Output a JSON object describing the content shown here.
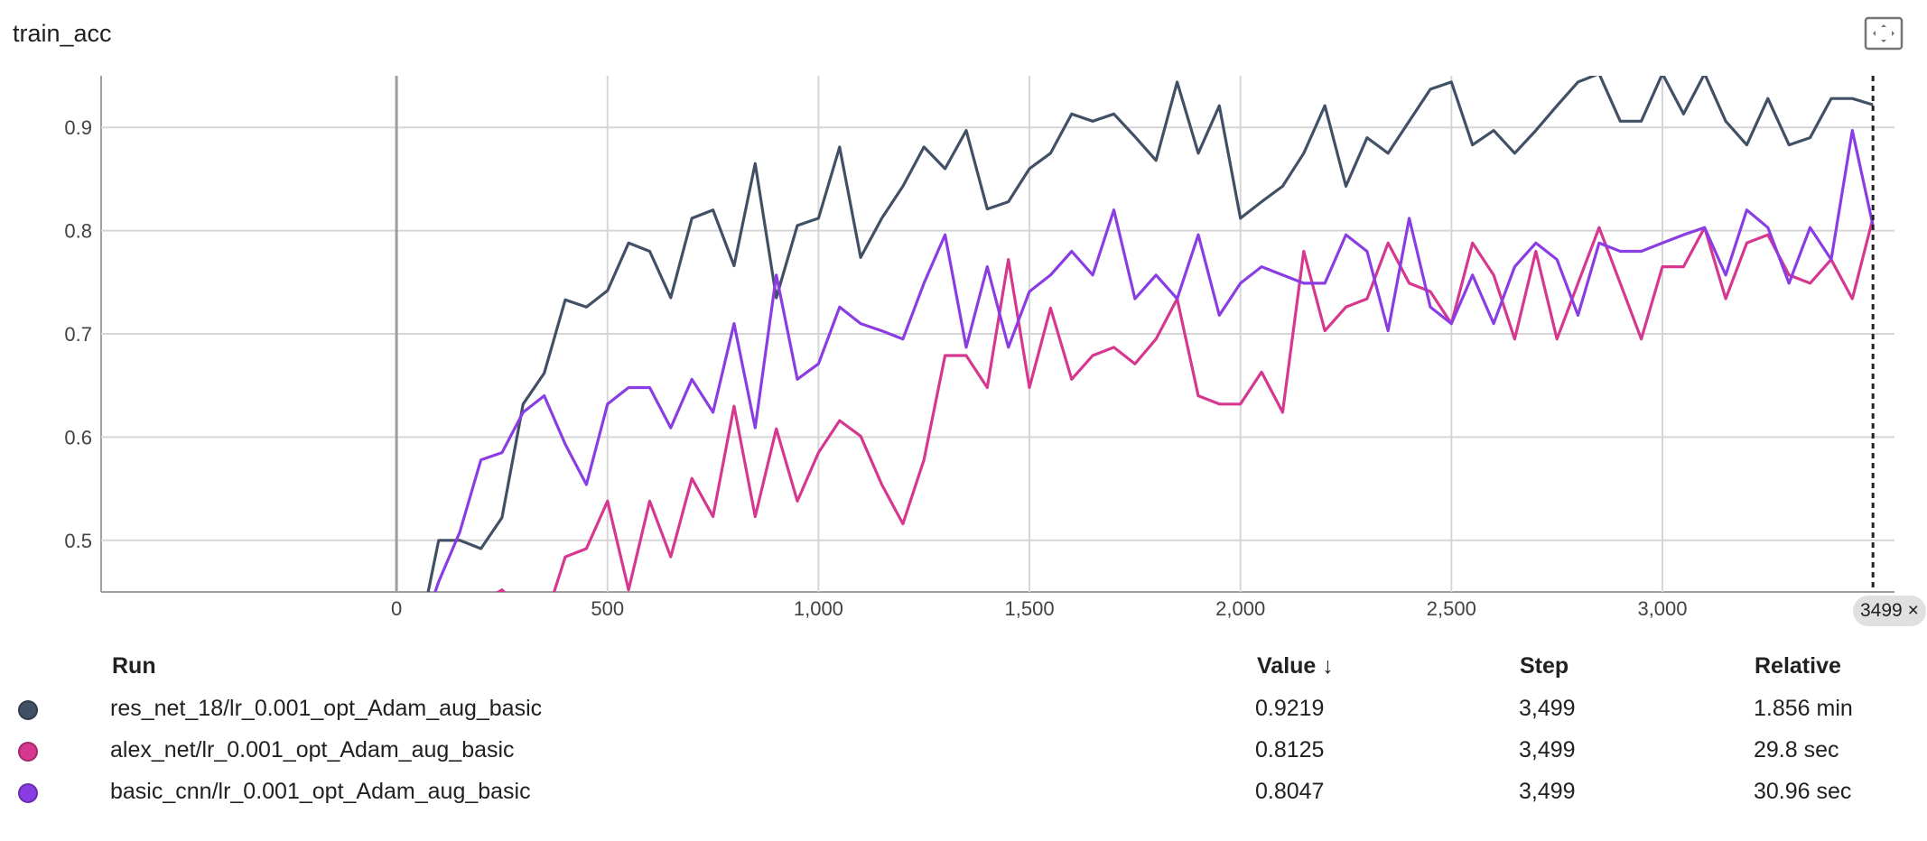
{
  "card": {
    "title": "train_acc",
    "fullscreen_icon": "fullscreen-icon"
  },
  "chart_data": {
    "type": "line",
    "title": "train_acc",
    "xlim": [
      -700,
      3550
    ],
    "ylim": [
      0.45,
      0.95
    ],
    "x_ticks": [
      0,
      500,
      1000,
      1500,
      2000,
      2500,
      3000
    ],
    "x_tick_labels": [
      "0",
      "500",
      "1,000",
      "1,500",
      "2,000",
      "2,500",
      "3,000"
    ],
    "y_ticks": [
      0.5,
      0.6,
      0.7,
      0.8,
      0.9
    ],
    "y_tick_labels": [
      "0.5",
      "0.6",
      "0.7",
      "0.8",
      "0.9"
    ],
    "grid": true,
    "cursor_step": 3499,
    "cursor_label": "3499",
    "series": [
      {
        "name": "res_net_18/lr_0.001_opt_Adam_aug_basic",
        "color": "#425066",
        "x": [
          50,
          100,
          150,
          200,
          250,
          300,
          350,
          400,
          450,
          500,
          550,
          600,
          650,
          700,
          750,
          800,
          850,
          900,
          950,
          1000,
          1050,
          1100,
          1150,
          1200,
          1250,
          1300,
          1350,
          1400,
          1450,
          1500,
          1550,
          1600,
          1650,
          1700,
          1750,
          1800,
          1850,
          1900,
          1950,
          2000,
          2050,
          2100,
          2150,
          2200,
          2250,
          2300,
          2350,
          2400,
          2450,
          2500,
          2550,
          2600,
          2650,
          2700,
          2750,
          2800,
          2850,
          2900,
          2950,
          3000,
          3050,
          3100,
          3150,
          3200,
          3250,
          3300,
          3350,
          3400,
          3450,
          3499
        ],
        "y": [
          0.4,
          0.5,
          0.5,
          0.492,
          0.522,
          0.632,
          0.662,
          0.733,
          0.726,
          0.742,
          0.788,
          0.78,
          0.735,
          0.812,
          0.82,
          0.766,
          0.865,
          0.735,
          0.805,
          0.812,
          0.881,
          0.774,
          0.812,
          0.843,
          0.881,
          0.86,
          0.897,
          0.821,
          0.828,
          0.86,
          0.875,
          0.913,
          0.906,
          0.913,
          0.891,
          0.868,
          0.944,
          0.875,
          0.921,
          0.812,
          0.828,
          0.843,
          0.875,
          0.921,
          0.843,
          0.89,
          0.875,
          0.906,
          0.937,
          0.944,
          0.883,
          0.897,
          0.875,
          0.897,
          0.921,
          0.944,
          0.952,
          0.906,
          0.906,
          0.952,
          0.913,
          0.952,
          0.906,
          0.883,
          0.928,
          0.883,
          0.89,
          0.928,
          0.928,
          0.9219
        ]
      },
      {
        "name": "alex_net/lr_0.001_opt_Adam_aug_basic",
        "color": "#d6378f",
        "x": [
          50,
          100,
          150,
          200,
          250,
          300,
          350,
          400,
          450,
          500,
          550,
          600,
          650,
          700,
          750,
          800,
          850,
          900,
          950,
          1000,
          1050,
          1100,
          1150,
          1200,
          1250,
          1300,
          1350,
          1400,
          1450,
          1500,
          1550,
          1600,
          1650,
          1700,
          1750,
          1800,
          1850,
          1900,
          1950,
          2000,
          2050,
          2100,
          2150,
          2200,
          2250,
          2300,
          2350,
          2400,
          2450,
          2500,
          2550,
          2600,
          2650,
          2700,
          2750,
          2800,
          2850,
          2900,
          2950,
          3000,
          3050,
          3100,
          3150,
          3200,
          3250,
          3300,
          3350,
          3400,
          3450,
          3499
        ],
        "y": [
          0.42,
          0.43,
          0.44,
          0.44,
          0.452,
          0.43,
          0.42,
          0.484,
          0.492,
          0.538,
          0.452,
          0.538,
          0.484,
          0.56,
          0.523,
          0.63,
          0.523,
          0.608,
          0.538,
          0.585,
          0.616,
          0.601,
          0.554,
          0.516,
          0.578,
          0.679,
          0.679,
          0.648,
          0.772,
          0.648,
          0.725,
          0.656,
          0.679,
          0.687,
          0.671,
          0.695,
          0.734,
          0.64,
          0.632,
          0.632,
          0.663,
          0.624,
          0.78,
          0.703,
          0.726,
          0.734,
          0.788,
          0.749,
          0.741,
          0.71,
          0.788,
          0.757,
          0.695,
          0.78,
          0.695,
          0.749,
          0.803,
          0.749,
          0.695,
          0.765,
          0.765,
          0.803,
          0.734,
          0.788,
          0.796,
          0.757,
          0.749,
          0.772,
          0.734,
          0.8125
        ]
      },
      {
        "name": "basic_cnn/lr_0.001_opt_Adam_aug_basic",
        "color": "#8a3de2",
        "x": [
          50,
          100,
          150,
          200,
          250,
          300,
          350,
          400,
          450,
          500,
          550,
          600,
          650,
          700,
          750,
          800,
          850,
          900,
          950,
          1000,
          1050,
          1100,
          1150,
          1200,
          1250,
          1300,
          1350,
          1400,
          1450,
          1500,
          1550,
          1600,
          1650,
          1700,
          1750,
          1800,
          1850,
          1900,
          1950,
          2000,
          2050,
          2100,
          2150,
          2200,
          2250,
          2300,
          2350,
          2400,
          2450,
          2500,
          2550,
          2600,
          2650,
          2700,
          2750,
          2800,
          2850,
          2900,
          2950,
          3000,
          3050,
          3100,
          3150,
          3200,
          3250,
          3300,
          3350,
          3400,
          3450,
          3499
        ],
        "y": [
          0.4,
          0.46,
          0.508,
          0.578,
          0.585,
          0.624,
          0.64,
          0.593,
          0.554,
          0.632,
          0.648,
          0.648,
          0.609,
          0.656,
          0.624,
          0.71,
          0.609,
          0.757,
          0.656,
          0.671,
          0.726,
          0.71,
          0.703,
          0.695,
          0.749,
          0.796,
          0.687,
          0.765,
          0.687,
          0.741,
          0.757,
          0.78,
          0.757,
          0.82,
          0.734,
          0.757,
          0.734,
          0.796,
          0.718,
          0.749,
          0.765,
          0.757,
          0.749,
          0.749,
          0.796,
          0.78,
          0.703,
          0.812,
          0.726,
          0.71,
          0.757,
          0.71,
          0.765,
          0.788,
          0.772,
          0.718,
          0.788,
          0.78,
          0.78,
          0.788,
          0.796,
          0.803,
          0.757,
          0.82,
          0.803,
          0.749,
          0.803,
          0.772,
          0.897,
          0.8047
        ]
      }
    ]
  },
  "table": {
    "headers": {
      "run": "Run",
      "value": "Value ↓",
      "step": "Step",
      "relative": "Relative"
    },
    "rows": [
      {
        "color": "#425066",
        "run": "res_net_18/lr_0.001_opt_Adam_aug_basic",
        "value": "0.9219",
        "step": "3,499",
        "relative": "1.856 min"
      },
      {
        "color": "#d6378f",
        "run": "alex_net/lr_0.001_opt_Adam_aug_basic",
        "value": "0.8125",
        "step": "3,499",
        "relative": "29.8 sec"
      },
      {
        "color": "#8a3de2",
        "run": "basic_cnn/lr_0.001_opt_Adam_aug_basic",
        "value": "0.8047",
        "step": "3,499",
        "relative": "30.96 sec"
      }
    ]
  }
}
